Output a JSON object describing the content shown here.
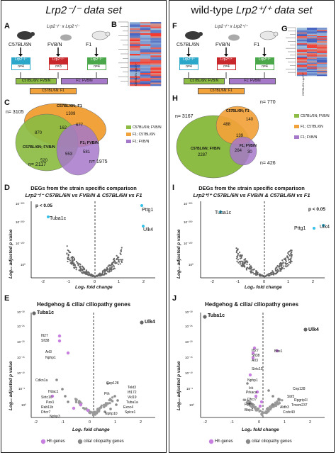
{
  "left": {
    "header": "Lrp2⁻/⁻ data set",
    "top": {
      "letters": [
        "A",
        "B"
      ],
      "cross": "Lrp2⁺/⁻ x Lrp2⁺/⁻",
      "strains": [
        "C57BL/6N",
        "FVB/N",
        "F1"
      ],
      "genotype": "Lrp2⁻/⁻",
      "n_labels": [
        "n=4",
        "n=3",
        "n=4"
      ],
      "compare_1": "C57BL/6N: FVB/N",
      "compare_2": "F1: FVB/N",
      "compare_3": "C57BL/6N: F1",
      "heatmap_cols": [
        "C57BL/6N Lrp2⁻/⁻",
        "FVB/N Lrp2⁻/⁻",
        "F1 Lrp2⁻/⁻"
      ]
    },
    "venn": {
      "letter": "C",
      "totals": [
        "n= 3105",
        "n= 2117",
        "n= 1975"
      ],
      "set_labels": [
        "C57BL/6N; F1",
        "C57BL/6N; FVB/N",
        "F1; FVB/N"
      ],
      "regions": [
        "1309",
        "870",
        "677",
        "162",
        "553",
        "581",
        "520"
      ],
      "legend": [
        "C57BL/6N; FVB/N",
        "F1; C57BL/6N",
        "F1; FVB/N"
      ],
      "colors": [
        "#8cbc44",
        "#f2a23a",
        "#a678c9"
      ]
    },
    "volcano": {
      "letter": "D",
      "title1": "DEGs from the strain specific comparison",
      "title2": "Lrp2⁻/⁻ C57BL/6N vs FVB/N & C57BL/6N vs F1",
      "pval": "p < 0.05",
      "ylabel": "Log₁₀ adjusted p value",
      "xlabel": "Log₂ fold change",
      "yticks": [
        "10⁻³⁰⁰",
        "10⁻²⁰⁰",
        "10⁻¹⁰⁰",
        "10⁰"
      ],
      "xticks": [
        "-2",
        "-1",
        "0",
        "1",
        "2"
      ],
      "genes": [
        "Tuba1c",
        "Pttg1",
        "Ulk4"
      ]
    },
    "hh": {
      "letter": "E",
      "title": "Hedgehog & cilia/ ciliopathy genes",
      "ylabel": "Log₁₀ adjusted p value",
      "xlabel": "Log₂ fold change",
      "yticks": [
        "10⁻³⁰",
        "10⁻²⁵",
        "10⁻²⁰",
        "10⁻¹⁵",
        "10⁻¹⁰",
        "10⁻⁵",
        "10⁰"
      ],
      "xticks": [
        "-2",
        "-1",
        "0",
        "1",
        "2"
      ],
      "genes": [
        "Tuba1c",
        "Ulk4",
        "Ift27",
        "Sfi38",
        "Arl3",
        "Nphp1",
        "Cdkn1a",
        "Hdac1",
        "Sirtc10",
        "Pax1",
        "Rab11b",
        "Dhcr7",
        "Nphp3",
        "Cep128",
        "Tekt3",
        "Ift172",
        "Vkl19",
        "Tuba1a",
        "Exoc4",
        "Spice1",
        "Pth",
        "Nphp10"
      ],
      "legend": [
        "Hh genes",
        "cilia/ ciliopathy genes"
      ]
    }
  },
  "right": {
    "header_prefix": "wild-type ",
    "header": "Lrp2⁺/⁺ data set",
    "top": {
      "letters": [
        "F",
        "G"
      ],
      "cross": "Lrp2⁺/⁺ x Lrp2⁺/⁺",
      "strains": [
        "C57BL/6N",
        "FVB/N",
        "F1"
      ],
      "genotype": "Lrp2⁺/⁺",
      "n_labels": [
        "n=4",
        "n=4",
        "n=4"
      ],
      "compare_1": "C57BL/6N: FVB/N",
      "compare_2": "F1: FVB/N",
      "compare_3": "C57BL/6N: F1",
      "heatmap_cols": [
        "C57BL/6N Lrp2⁺/⁺",
        "FVB/N Lrp2⁺/⁺",
        "F1 Lrp2⁺/⁺"
      ]
    },
    "venn": {
      "letter": "H",
      "totals": [
        "n= 3167",
        "n= 770",
        "n= 426"
      ],
      "set_labels": [
        "C57BL/6N; F1",
        "C57BL/6N; FVB/N",
        "F1; FVB/N"
      ],
      "regions": [
        "140",
        "488",
        "139",
        "264",
        "2287",
        "30"
      ],
      "legend": [
        "C57BL/6N; FVB/N",
        "F1; C57BL/6N",
        "F1; FVB/N"
      ],
      "colors": [
        "#8cbc44",
        "#f2a23a",
        "#a678c9"
      ]
    },
    "volcano": {
      "letter": "I",
      "title1": "DEGs from the strain specific comparison",
      "title2": "Lrp2⁺/⁺ C57BL/6N vs FVB/N & C57BL/6N vs F1",
      "pval": "p < 0.05",
      "ylabel": "Log₁₀ adjusted p value",
      "xlabel": "Log₂ fold change",
      "yticks": [
        "10⁻³⁰⁰",
        "10⁻²⁰⁰",
        "10⁻¹⁰⁰",
        "10⁰"
      ],
      "xticks": [
        "-2",
        "-1",
        "0",
        "1",
        "2"
      ],
      "genes": [
        "Tuba1c",
        "Pttg1",
        "Ulk4"
      ]
    },
    "hh": {
      "letter": "J",
      "title": "Hedgehog & cilia/ ciliopathy genes",
      "ylabel": "Log₁₀ adjusted p value",
      "xlabel": "Log₂ fold change",
      "yticks": [
        "10⁻³⁰",
        "10⁻²⁵",
        "10⁻²⁰",
        "10⁻¹⁵",
        "10⁻¹⁰",
        "10⁻⁵",
        "10⁰"
      ],
      "xticks": [
        "-2",
        "-1",
        "0",
        "1",
        "2"
      ],
      "genes": [
        "Tuba1c",
        "Ulk4",
        "Bbs1",
        "Ift27",
        "Sfi38",
        "Arl3",
        "Sirtc10",
        "Nphp1",
        "Ick",
        "Prkaca",
        "Dhcr7",
        "Fgfr1",
        "Bbip1",
        "Cep128",
        "Sbf2",
        "Rpgrip1l",
        "Tmem237",
        "Ccdc40",
        "Aldh3"
      ],
      "legend": [
        "Hh genes",
        "cilia/ ciliopathy genes"
      ]
    }
  }
}
